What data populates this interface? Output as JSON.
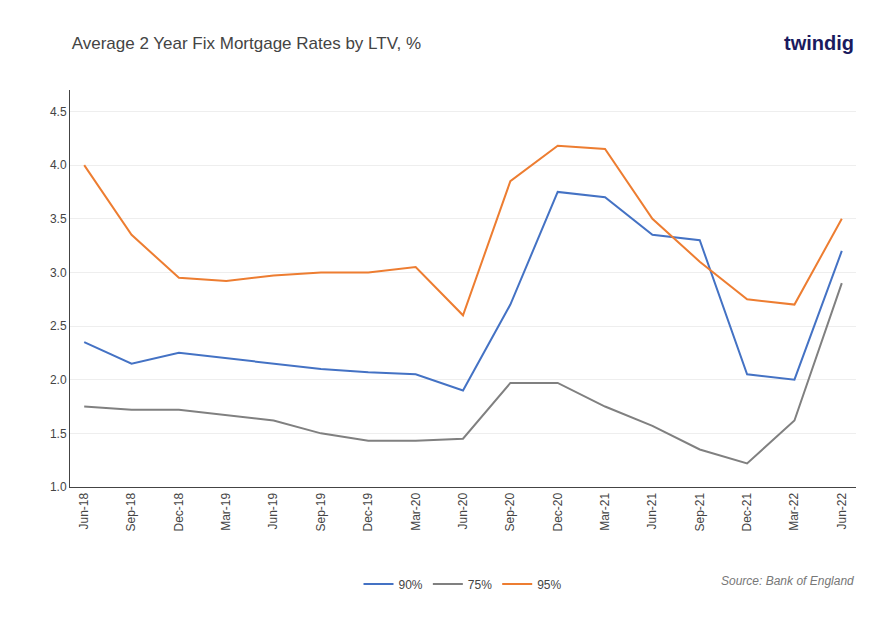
{
  "chart_data": {
    "type": "line",
    "title": "Average 2 Year Fix Mortgage Rates by LTV, %",
    "annotations": [
      "twindig",
      "Source: Bank of England"
    ],
    "categories": [
      "Jun-18",
      "Sep-18",
      "Dec-18",
      "Mar-19",
      "Jun-19",
      "Sep-19",
      "Dec-19",
      "Mar-20",
      "Jun-20",
      "Sep-20",
      "Dec-20",
      "Mar-21",
      "Jun-21",
      "Sep-21",
      "Dec-21",
      "Mar-22",
      "Jun-22"
    ],
    "series": [
      {
        "name": "90%",
        "color": "#4472c4",
        "values": [
          2.35,
          2.15,
          2.25,
          2.2,
          2.15,
          2.1,
          2.07,
          2.05,
          1.9,
          2.7,
          3.75,
          3.7,
          3.35,
          3.3,
          2.05,
          2.0,
          3.2
        ]
      },
      {
        "name": "75%",
        "color": "#808080",
        "values": [
          1.75,
          1.72,
          1.72,
          1.67,
          1.62,
          1.5,
          1.43,
          1.43,
          1.45,
          1.97,
          1.97,
          1.75,
          1.57,
          1.35,
          1.22,
          1.62,
          2.9
        ]
      },
      {
        "name": "95%",
        "color": "#ed7d31",
        "values": [
          4.0,
          3.35,
          2.95,
          2.92,
          2.97,
          3.0,
          3.0,
          3.05,
          2.6,
          3.85,
          4.18,
          4.15,
          3.5,
          3.1,
          2.75,
          2.7,
          3.5
        ]
      }
    ],
    "ylim": [
      1.0,
      4.7
    ],
    "yticks": [
      {
        "value": 1.0,
        "label": "1.0"
      },
      1.5,
      {
        "value": 2.0,
        "label": "2.0"
      },
      2.5,
      {
        "value": 3.0,
        "label": "3.0"
      },
      3.5,
      {
        "value": 4.0,
        "label": "4.0"
      },
      4.5
    ],
    "grid": true,
    "legend": "bottom"
  }
}
